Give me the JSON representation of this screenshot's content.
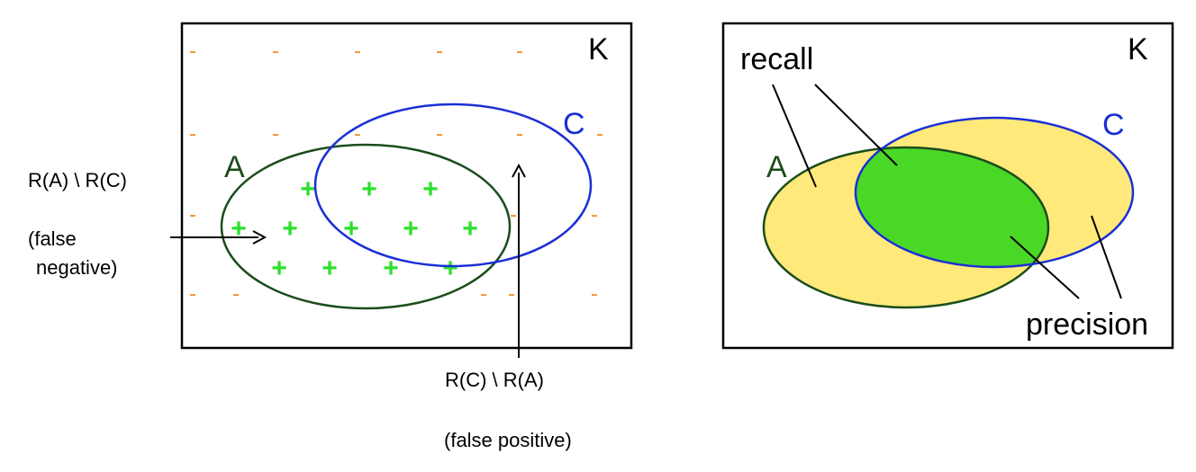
{
  "colors": {
    "frame": "#000000",
    "set_a": "#1b4d1b",
    "set_c": "#1a2fd6",
    "plus": "#2ddf2d",
    "minus": "#f0922a",
    "fill_union": "#ffe97a",
    "fill_intersection": "#4ad826"
  },
  "left_panel": {
    "universe_label": "K",
    "set_a_label": "A",
    "set_c_label": "C",
    "plus_symbol": "+",
    "minus_symbol": "-",
    "fn_set_label": "R(A) \\ R(C)",
    "fn_caption_line1": "(false",
    "fn_caption_line2": "negative)",
    "fp_set_label": "R(C) \\ R(A)",
    "fp_caption": "(false positive)"
  },
  "right_panel": {
    "universe_label": "K",
    "set_a_label": "A",
    "set_c_label": "C",
    "recall_label": "recall",
    "precision_label": "precision"
  }
}
